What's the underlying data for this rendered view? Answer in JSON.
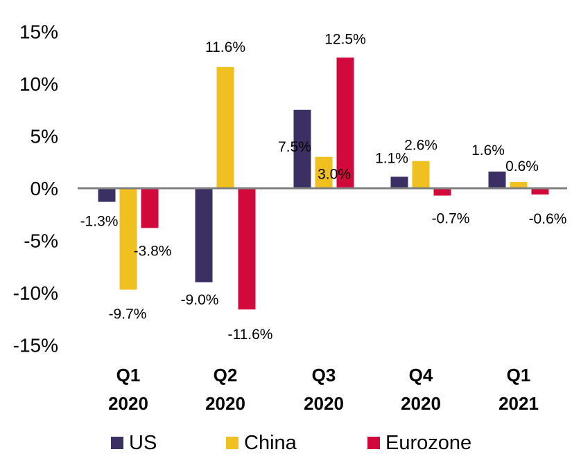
{
  "chart_data": {
    "type": "bar",
    "categories": [
      [
        "Q1",
        "2020"
      ],
      [
        "Q2",
        "2020"
      ],
      [
        "Q3",
        "2020"
      ],
      [
        "Q4",
        "2020"
      ],
      [
        "Q1",
        "2021"
      ]
    ],
    "series": [
      {
        "name": "US",
        "color": "#3b2f63",
        "values": [
          -1.3,
          -9.0,
          7.5,
          1.1,
          1.6
        ],
        "labels": [
          "-1.3%",
          "-9.0%",
          "7.5%",
          "1.1%",
          "1.6%"
        ]
      },
      {
        "name": "China",
        "color": "#f0c020",
        "values": [
          -9.7,
          11.6,
          3.0,
          2.6,
          0.6
        ],
        "labels": [
          "-9.7%",
          "11.6%",
          "3.0%",
          "2.6%",
          "0.6%"
        ]
      },
      {
        "name": "Eurozone",
        "color": "#d20a3c",
        "values": [
          -3.8,
          -11.6,
          12.5,
          -0.7,
          -0.6
        ],
        "labels": [
          "-3.8%",
          "-11.6%",
          "12.5%",
          "-0.7%",
          "-0.6%"
        ]
      }
    ],
    "yticks": [
      "15%",
      "10%",
      "5%",
      "0%",
      "-5%",
      "-10%",
      "-15%"
    ],
    "ytick_values": [
      15,
      10,
      5,
      0,
      -5,
      -10,
      -15
    ],
    "ylim": [
      -15,
      15
    ],
    "title": "",
    "xlabel": "",
    "ylabel": "",
    "grid": false,
    "legend_position": "bottom",
    "zero_line_color": "#808080"
  }
}
